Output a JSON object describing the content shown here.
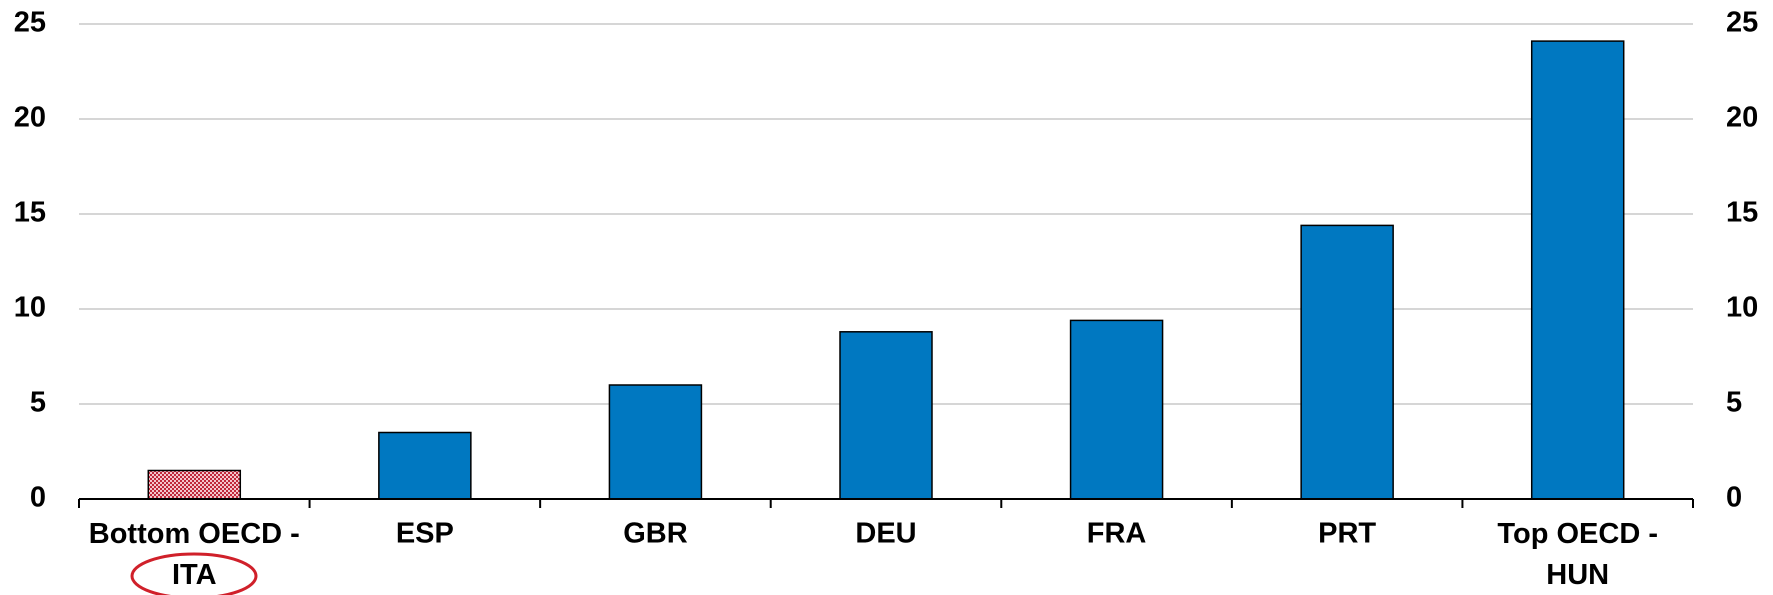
{
  "chart_data": {
    "type": "bar",
    "categories": [
      "Bottom OECD - ITA",
      "ESP",
      "GBR",
      "DEU",
      "FRA",
      "PRT",
      "Top OECD - HUN"
    ],
    "values": [
      1.5,
      3.5,
      6.0,
      8.8,
      9.4,
      14.4,
      24.1
    ],
    "colors": [
      "#c0283a",
      "#0078c1",
      "#0078c1",
      "#0078c1",
      "#0078c1",
      "#0078c1",
      "#0078c1"
    ],
    "hatched": [
      true,
      false,
      false,
      false,
      false,
      false,
      false
    ],
    "ylim": [
      0,
      25
    ],
    "yticks": [
      0,
      5,
      10,
      15,
      20,
      25
    ],
    "y2lim": [
      0,
      25
    ],
    "y2ticks": [
      0,
      5,
      10,
      15,
      20,
      25
    ],
    "grid": true
  }
}
